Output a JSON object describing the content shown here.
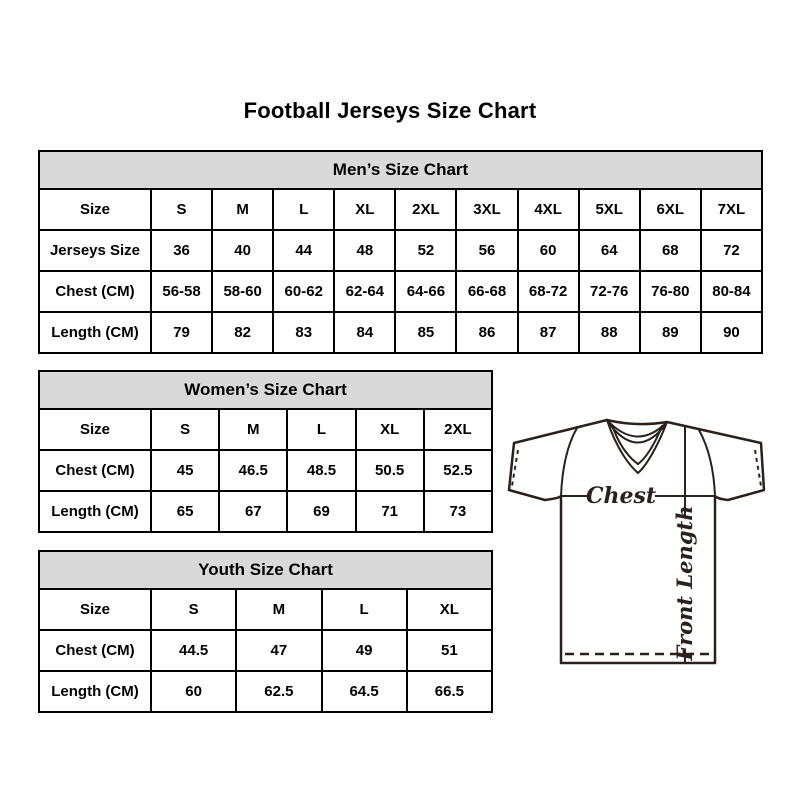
{
  "title": "Football Jerseys Size Chart",
  "colors": {
    "table_header_bg": "#d9d9d9",
    "border_color": "#000000",
    "text_color": "#000000",
    "diagram_line": "#2b211c"
  },
  "tables": [
    {
      "name": "mens",
      "title": "Men’s Size Chart",
      "header_row": [
        "Size",
        "S",
        "M",
        "L",
        "XL",
        "2XL",
        "3XL",
        "4XL",
        "5XL",
        "6XL",
        "7XL"
      ],
      "rows": [
        [
          "Jerseys Size",
          "36",
          "40",
          "44",
          "48",
          "52",
          "56",
          "60",
          "64",
          "68",
          "72"
        ],
        [
          "Chest (CM)",
          "56-58",
          "58-60",
          "60-62",
          "62-64",
          "64-66",
          "66-68",
          "68-72",
          "72-76",
          "76-80",
          "80-84"
        ],
        [
          "Length (CM)",
          "79",
          "82",
          "83",
          "84",
          "85",
          "86",
          "87",
          "88",
          "89",
          "90"
        ]
      ]
    },
    {
      "name": "womens",
      "title": "Women’s Size Chart",
      "header_row": [
        "Size",
        "S",
        "M",
        "L",
        "XL",
        "2XL"
      ],
      "rows": [
        [
          "Chest (CM)",
          "45",
          "46.5",
          "48.5",
          "50.5",
          "52.5"
        ],
        [
          "Length (CM)",
          "65",
          "67",
          "69",
          "71",
          "73"
        ]
      ]
    },
    {
      "name": "youth",
      "title": "Youth Size Chart",
      "header_row": [
        "Size",
        "S",
        "M",
        "L",
        "XL"
      ],
      "rows": [
        [
          "Chest (CM)",
          "44.5",
          "47",
          "49",
          "51"
        ],
        [
          "Length (CM)",
          "60",
          "62.5",
          "64.5",
          "66.5"
        ]
      ]
    }
  ],
  "diagram": {
    "chest_label": "Chest",
    "front_length_label": "Front Length"
  }
}
